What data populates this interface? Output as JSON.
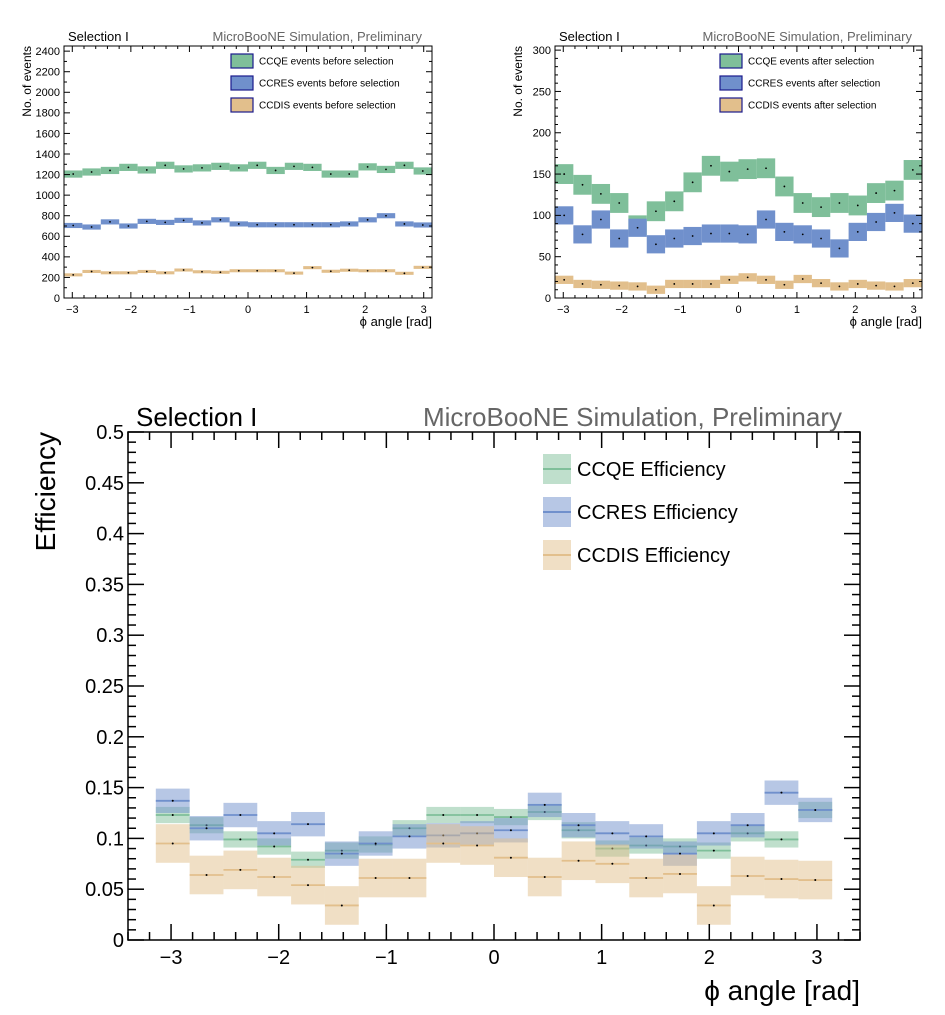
{
  "chart_data": [
    {
      "type": "area",
      "panel": "top-left",
      "header_left": "Selection I",
      "header_right": "MicroBooNE Simulation, Preliminary",
      "xlabel": "ϕ angle [rad]",
      "ylabel": "No. of events",
      "xlim": [
        -3.14159,
        3.14159
      ],
      "ylim": [
        0,
        2450
      ],
      "xticks": [
        -3,
        -2,
        -1,
        0,
        1,
        2,
        3
      ],
      "yticks": [
        0,
        200,
        400,
        600,
        800,
        1000,
        1200,
        1400,
        1600,
        1800,
        2000,
        2200,
        2400
      ],
      "legend_position": "top-right",
      "bins": 20,
      "series": [
        {
          "name": "CCQE events before selection",
          "color": "#7fbf9a",
          "values": [
            1205,
            1225,
            1240,
            1270,
            1245,
            1290,
            1255,
            1265,
            1280,
            1265,
            1290,
            1240,
            1280,
            1270,
            1205,
            1205,
            1275,
            1250,
            1290,
            1235
          ],
          "half_width": 35
        },
        {
          "name": "CCRES events before selection",
          "color": "#7090cc",
          "values": [
            705,
            690,
            740,
            700,
            745,
            735,
            755,
            730,
            760,
            720,
            712,
            712,
            712,
            712,
            712,
            720,
            760,
            800,
            720,
            710
          ],
          "half_width": 25
        },
        {
          "name": "CCDIS events before selection",
          "color": "#e2bf8c",
          "values": [
            225,
            258,
            245,
            245,
            258,
            245,
            272,
            255,
            250,
            265,
            265,
            265,
            242,
            295,
            260,
            270,
            265,
            265,
            240,
            298
          ],
          "half_width": 15
        }
      ]
    },
    {
      "type": "area",
      "panel": "top-right",
      "header_left": "Selection I",
      "header_right": "MicroBooNE Simulation, Preliminary",
      "xlabel": "ϕ angle [rad]",
      "ylabel": "No. of events",
      "xlim": [
        -3.14159,
        3.14159
      ],
      "ylim": [
        0,
        305
      ],
      "xticks": [
        -3,
        -2,
        -1,
        0,
        1,
        2,
        3
      ],
      "yticks": [
        0,
        50,
        100,
        150,
        200,
        250,
        300
      ],
      "legend_position": "top-right",
      "bins": 20,
      "series": [
        {
          "name": "CCQE events after selection",
          "color": "#7fbf9a",
          "values": [
            150,
            137,
            126,
            115,
            88,
            105,
            117,
            140,
            160,
            153,
            156,
            157,
            135,
            115,
            110,
            115,
            112,
            127,
            130,
            155
          ],
          "half_width": 12
        },
        {
          "name": "CCRES events after selection",
          "color": "#7090cc",
          "values": [
            100,
            77,
            95,
            72,
            85,
            65,
            72,
            75,
            78,
            78,
            77,
            95,
            80,
            77,
            72,
            60,
            80,
            92,
            103,
            90
          ],
          "half_width": 11
        },
        {
          "name": "CCDIS events after selection",
          "color": "#e2bf8c",
          "values": [
            22,
            17,
            16,
            15,
            14,
            10,
            17,
            17,
            17,
            22,
            25,
            22,
            16,
            23,
            18,
            14,
            17,
            15,
            14,
            18
          ],
          "half_width": 5
        }
      ]
    },
    {
      "type": "area",
      "panel": "bottom",
      "header_left": "Selection I",
      "header_right": "MicroBooNE Simulation, Preliminary",
      "xlabel": "ϕ angle [rad]",
      "ylabel": "Efficiency",
      "xlim": [
        -3.4,
        3.4
      ],
      "ylim": [
        0,
        0.5
      ],
      "xticks": [
        -3,
        -2,
        -1,
        0,
        1,
        2,
        3
      ],
      "yticks": [
        0,
        0.05,
        0.1,
        0.15,
        0.2,
        0.25,
        0.3,
        0.35,
        0.4,
        0.45,
        0.5
      ],
      "ytick_labels": [
        "0",
        "0.05",
        "0.1",
        "0.15",
        "0.2",
        "0.25",
        "0.3",
        "0.35",
        "0.4",
        "0.45",
        "0.5"
      ],
      "legend_position": "top-right",
      "bins": 20,
      "xrange_hist": [
        -3.14159,
        3.14159
      ],
      "series": [
        {
          "name": "CCQE Efficiency",
          "color": "#7fbf9a",
          "values": [
            0.123,
            0.113,
            0.099,
            0.092,
            0.079,
            0.088,
            0.094,
            0.11,
            0.123,
            0.123,
            0.121,
            0.126,
            0.108,
            0.09,
            0.093,
            0.092,
            0.088,
            0.105,
            0.099,
            0.128
          ],
          "half_width": 0.008
        },
        {
          "name": "CCRES Efficiency",
          "color": "#7090cc",
          "values": [
            0.137,
            0.11,
            0.123,
            0.105,
            0.114,
            0.085,
            0.095,
            0.102,
            0.103,
            0.105,
            0.108,
            0.133,
            0.113,
            0.105,
            0.102,
            0.085,
            0.105,
            0.113,
            0.145,
            0.128
          ],
          "half_width": 0.012
        },
        {
          "name": "CCDIS Efficiency",
          "color": "#e2bf8c",
          "values": [
            0.095,
            0.064,
            0.069,
            0.062,
            0.054,
            0.034,
            0.061,
            0.061,
            0.095,
            0.093,
            0.081,
            0.062,
            0.078,
            0.075,
            0.061,
            0.065,
            0.034,
            0.063,
            0.06,
            0.059
          ],
          "half_width": 0.019
        }
      ]
    }
  ]
}
